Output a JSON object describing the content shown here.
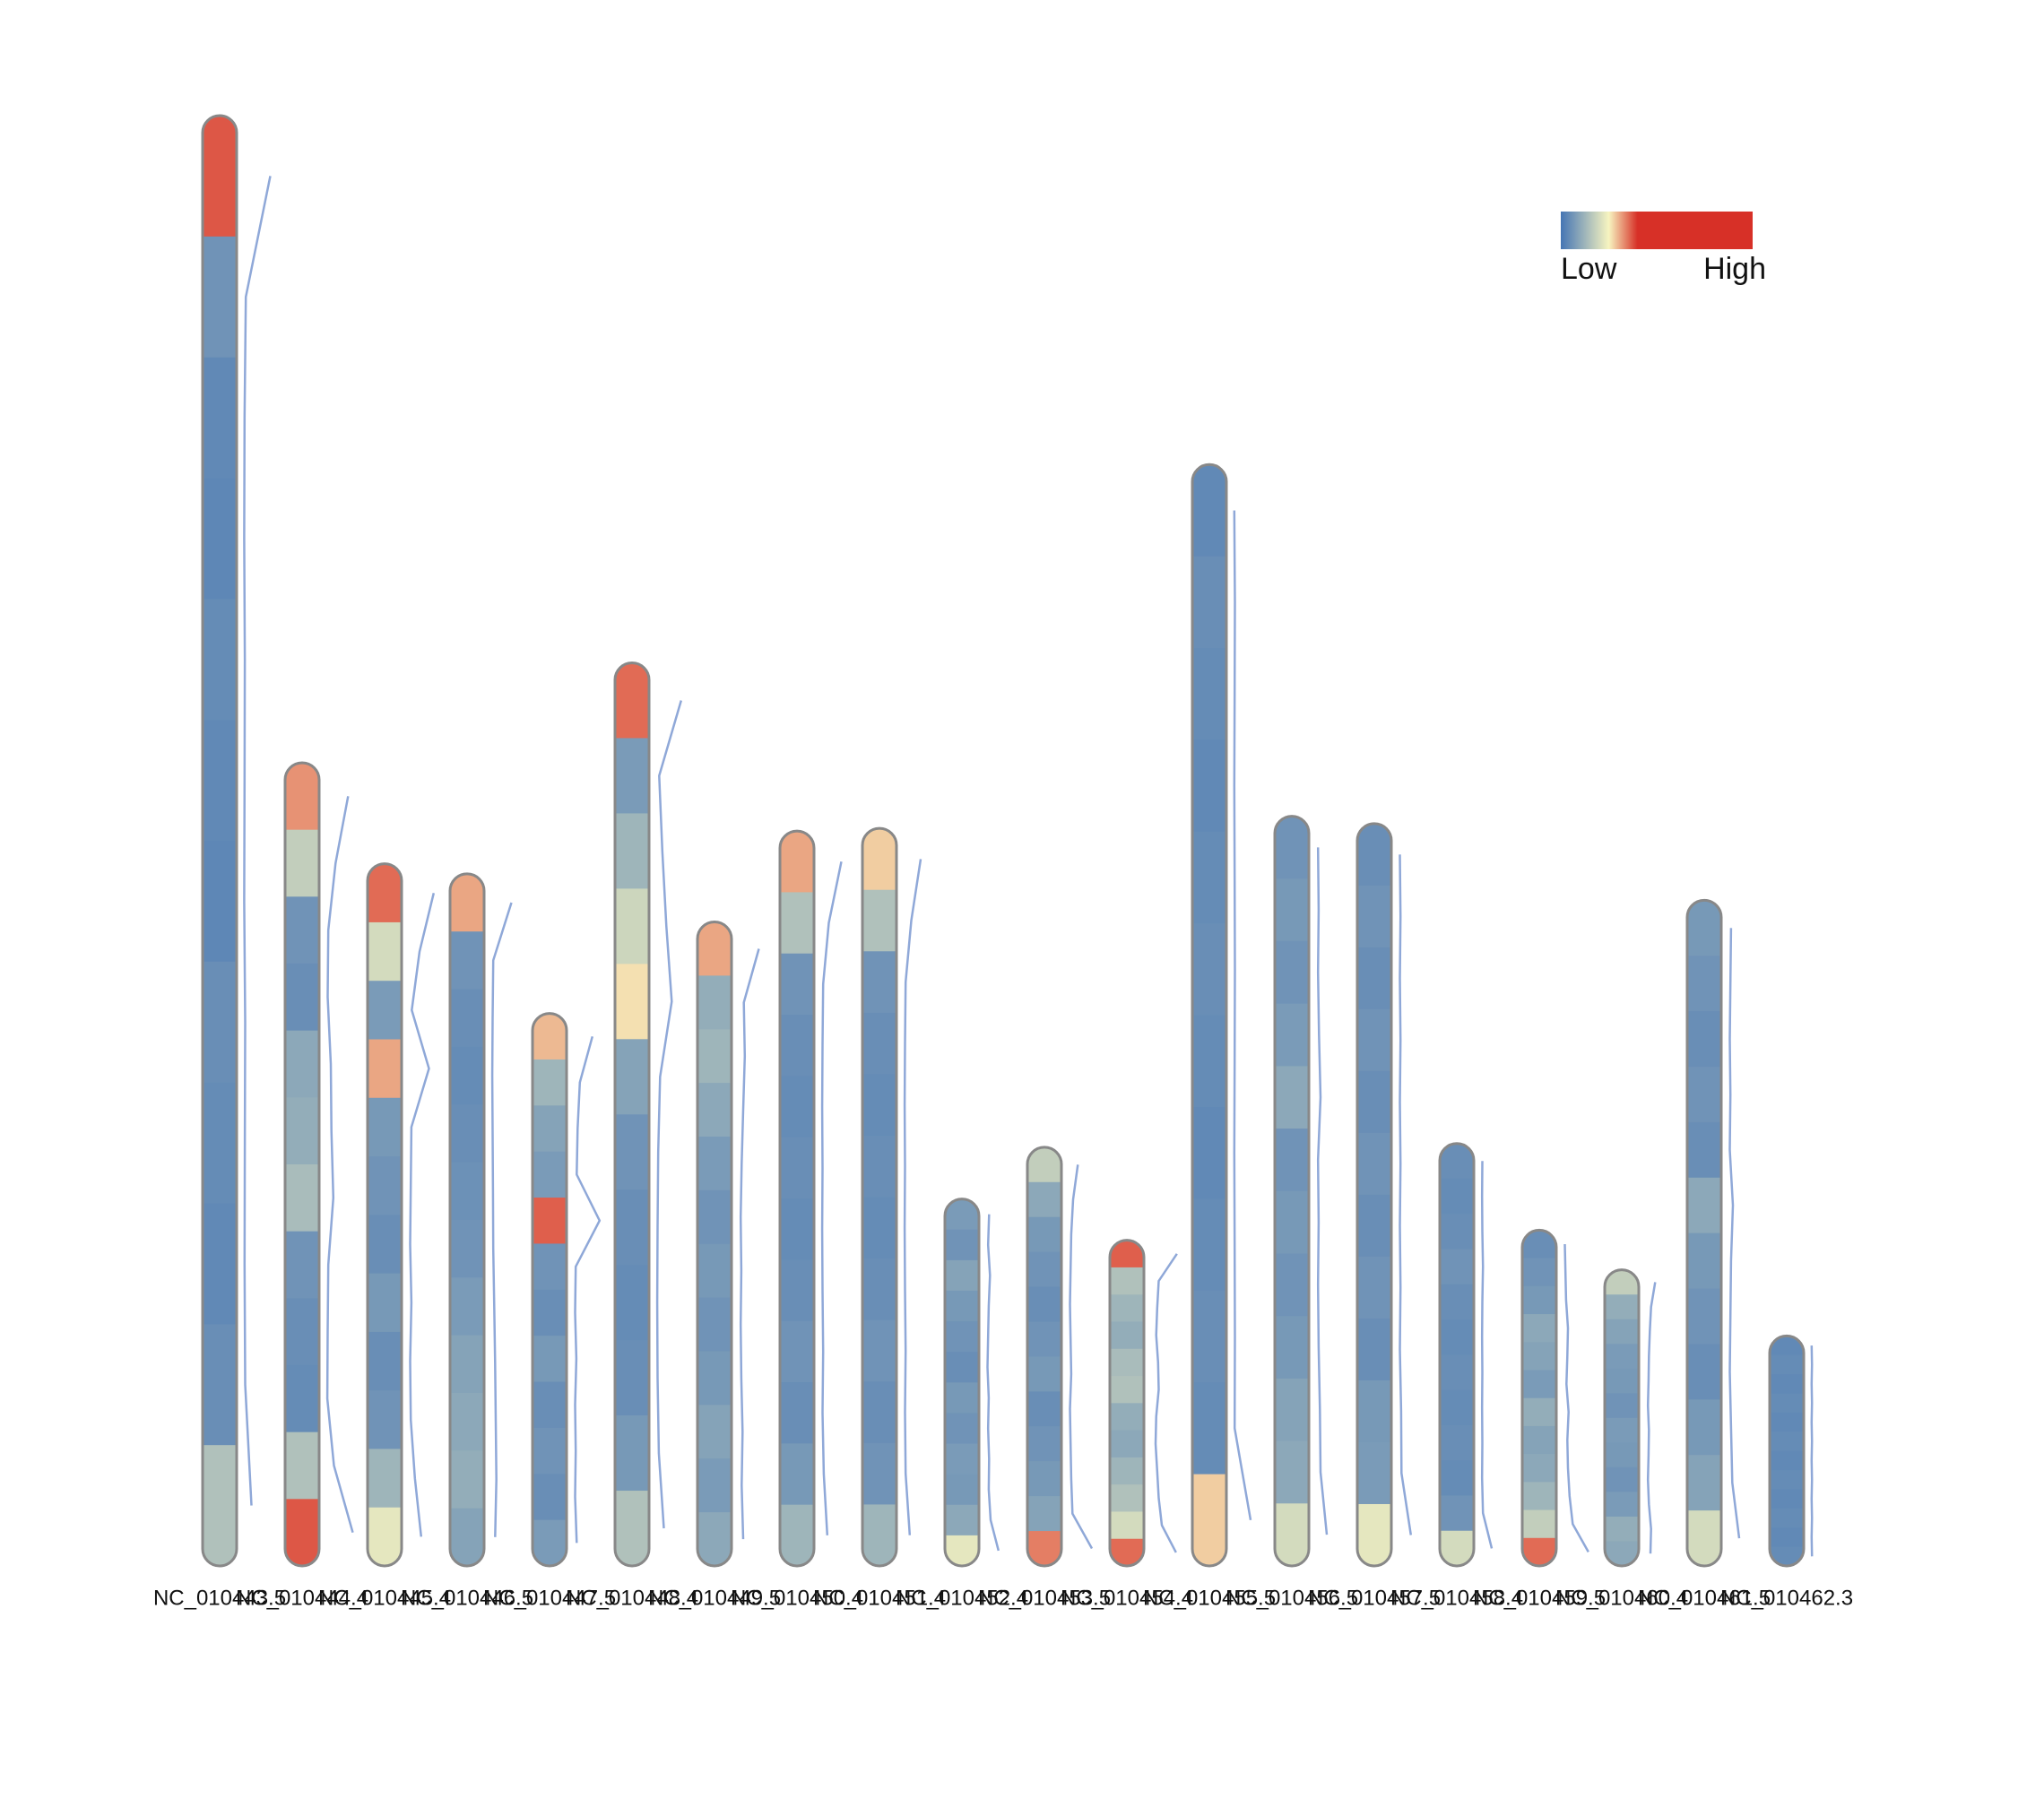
{
  "chart_data": {
    "type": "chromosome-density",
    "legend_labels": [
      "Low",
      "High"
    ],
    "colors": [
      "#4575b4",
      "#f7f4c0",
      "#d73027"
    ],
    "density_range": [
      0,
      100
    ],
    "series": [
      {
        "name": "NC_010443.5",
        "length": 274.3,
        "density": [
          90,
          12,
          8,
          7,
          9,
          8,
          7,
          10,
          9,
          8,
          10,
          30
        ]
      },
      {
        "name": "NC_010444.4",
        "length": 151.9,
        "density": [
          75,
          35,
          12,
          10,
          20,
          22,
          28,
          12,
          10,
          9,
          30,
          90
        ]
      },
      {
        "name": "NC_010445.4",
        "length": 132.8,
        "density": [
          85,
          40,
          15,
          70,
          14,
          12,
          10,
          14,
          10,
          12,
          25,
          45
        ]
      },
      {
        "name": "NC_010446.5",
        "length": 130.9,
        "density": [
          70,
          12,
          10,
          9,
          10,
          11,
          12,
          15,
          18,
          20,
          22,
          18
        ]
      },
      {
        "name": "NC_010447.5",
        "length": 104.5,
        "density": [
          65,
          25,
          18,
          15,
          88,
          12,
          10,
          14,
          10,
          12,
          10,
          15
        ]
      },
      {
        "name": "NC_010448.4",
        "length": 170.8,
        "density": [
          85,
          15,
          25,
          38,
          55,
          18,
          12,
          10,
          9,
          10,
          14,
          30
        ]
      },
      {
        "name": "NC_010449.5",
        "length": 121.8,
        "density": [
          70,
          22,
          25,
          20,
          15,
          12,
          14,
          12,
          14,
          18,
          15,
          20
        ]
      },
      {
        "name": "NC_010450.4",
        "length": 139.0,
        "density": [
          70,
          30,
          12,
          10,
          9,
          10,
          9,
          10,
          12,
          10,
          14,
          25
        ]
      },
      {
        "name": "NC_010451.4",
        "length": 139.5,
        "density": [
          60,
          30,
          12,
          10,
          9,
          10,
          9,
          10,
          12,
          10,
          12,
          25
        ]
      },
      {
        "name": "NC_010452.4",
        "length": 69.4,
        "density": [
          15,
          12,
          18,
          14,
          12,
          10,
          14,
          12,
          15,
          14,
          20,
          45
        ]
      },
      {
        "name": "NC_010453.5",
        "length": 79.2,
        "density": [
          35,
          20,
          14,
          12,
          10,
          12,
          14,
          10,
          12,
          14,
          18,
          80
        ]
      },
      {
        "name": "NC_010454.4",
        "length": 61.6,
        "density": [
          88,
          30,
          25,
          22,
          28,
          30,
          22,
          20,
          25,
          30,
          40,
          85
        ]
      },
      {
        "name": "NC_010455.5",
        "length": 208.3,
        "density": [
          8,
          10,
          9,
          8,
          9,
          10,
          9,
          8,
          9,
          10,
          9,
          60
        ]
      },
      {
        "name": "NC_010456.5",
        "length": 141.8,
        "density": [
          12,
          14,
          12,
          15,
          20,
          12,
          14,
          12,
          14,
          18,
          20,
          40
        ]
      },
      {
        "name": "NC_010457.5",
        "length": 140.4,
        "density": [
          10,
          12,
          10,
          12,
          10,
          12,
          10,
          12,
          10,
          14,
          15,
          45
        ]
      },
      {
        "name": "NC_010458.4",
        "length": 79.9,
        "density": [
          10,
          9,
          10,
          12,
          10,
          9,
          10,
          9,
          10,
          9,
          12,
          40
        ]
      },
      {
        "name": "NC_010459.5",
        "length": 63.5,
        "density": [
          10,
          12,
          14,
          20,
          18,
          15,
          22,
          18,
          20,
          25,
          35,
          85
        ]
      },
      {
        "name": "NC_010460.4",
        "length": 56.0,
        "density": [
          35,
          22,
          18,
          15,
          14,
          12,
          15,
          14,
          12,
          15,
          22,
          20
        ]
      },
      {
        "name": "NC_010461.5",
        "length": 125.9,
        "density": [
          14,
          12,
          10,
          12,
          10,
          20,
          14,
          12,
          10,
          14,
          18,
          40
        ]
      },
      {
        "name": "NC_010462.3",
        "length": 43.5,
        "density": [
          8,
          9,
          8,
          9,
          8,
          9,
          8,
          9,
          8,
          9,
          8,
          9
        ]
      }
    ]
  }
}
